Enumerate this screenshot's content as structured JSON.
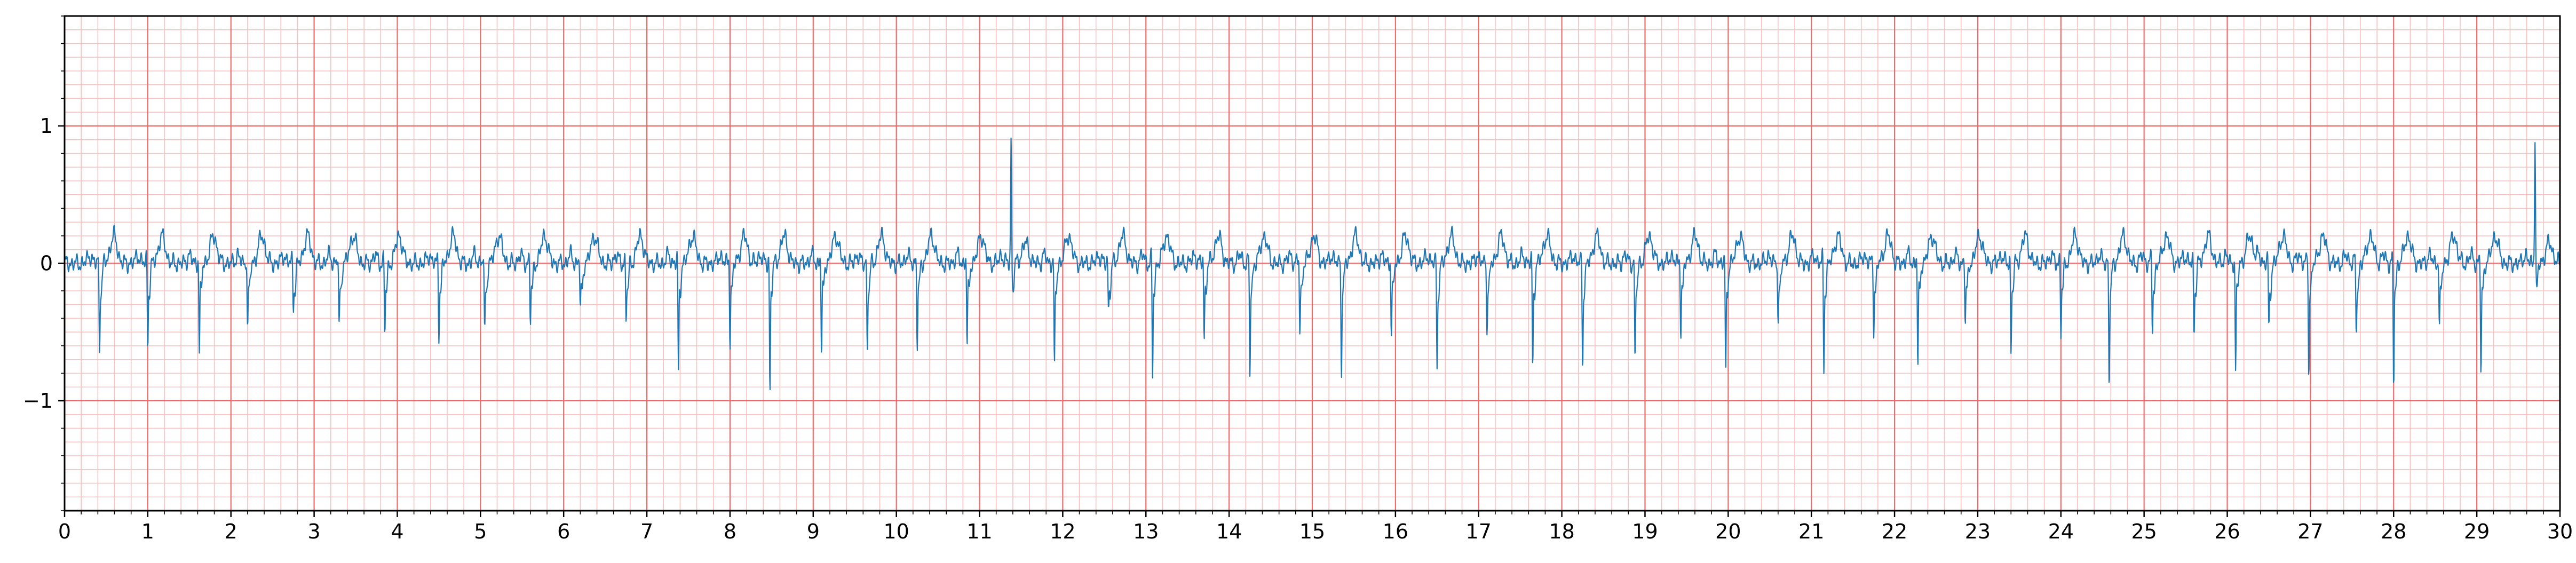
{
  "chart_data": {
    "type": "line",
    "title": "",
    "xlabel": "",
    "ylabel": "",
    "xlim": [
      0,
      30
    ],
    "ylim": [
      -1.8,
      1.8
    ],
    "grid": true,
    "grid_major_color": "#f26b6b",
    "grid_minor_color": "#f9c0c0",
    "line_color": "#1f77b4",
    "x_ticks": [
      0,
      1,
      2,
      3,
      4,
      5,
      6,
      7,
      8,
      9,
      10,
      11,
      12,
      13,
      14,
      15,
      16,
      17,
      18,
      19,
      20,
      21,
      22,
      23,
      24,
      25,
      26,
      27,
      28,
      29,
      30
    ],
    "x_tick_labels": [
      "0",
      "1",
      "2",
      "3",
      "4",
      "5",
      "6",
      "7",
      "8",
      "9",
      "10",
      "11",
      "12",
      "13",
      "14",
      "15",
      "16",
      "17",
      "18",
      "19",
      "20",
      "21",
      "22",
      "23",
      "24",
      "25",
      "26",
      "27",
      "28",
      "29",
      "30"
    ],
    "y_ticks": [
      -1,
      0,
      1
    ],
    "y_tick_labels": [
      "−1",
      "0",
      "1"
    ],
    "beats": [
      {
        "t": 0.42,
        "a": -0.6
      },
      {
        "t": 1.0,
        "a": -0.55
      },
      {
        "t": 1.62,
        "a": -0.6
      },
      {
        "t": 2.2,
        "a": -0.45
      },
      {
        "t": 2.75,
        "a": -0.25
      },
      {
        "t": 3.3,
        "a": -0.42
      },
      {
        "t": 3.85,
        "a": -0.45
      },
      {
        "t": 4.5,
        "a": -0.46
      },
      {
        "t": 5.05,
        "a": -0.48
      },
      {
        "t": 5.6,
        "a": -0.37
      },
      {
        "t": 6.2,
        "a": -0.3
      },
      {
        "t": 6.75,
        "a": -0.35
      },
      {
        "t": 7.38,
        "a": -0.75
      },
      {
        "t": 8.0,
        "a": -0.52
      },
      {
        "t": 8.48,
        "a": -0.9
      },
      {
        "t": 9.1,
        "a": -0.6
      },
      {
        "t": 9.65,
        "a": -0.6
      },
      {
        "t": 10.25,
        "a": -0.55
      },
      {
        "t": 10.85,
        "a": -0.55
      },
      {
        "t": 11.38,
        "a": 0.98
      },
      {
        "t": 11.9,
        "a": -0.75
      },
      {
        "t": 12.55,
        "a": -0.3
      },
      {
        "t": 13.08,
        "a": -0.78
      },
      {
        "t": 13.7,
        "a": -0.5
      },
      {
        "t": 14.25,
        "a": -0.78
      },
      {
        "t": 14.85,
        "a": -0.45
      },
      {
        "t": 15.35,
        "a": -0.75
      },
      {
        "t": 15.95,
        "a": -0.46
      },
      {
        "t": 16.5,
        "a": -0.72
      },
      {
        "t": 17.1,
        "a": -0.44
      },
      {
        "t": 17.65,
        "a": -0.72
      },
      {
        "t": 18.25,
        "a": -0.7
      },
      {
        "t": 18.88,
        "a": -0.7
      },
      {
        "t": 19.43,
        "a": -0.45
      },
      {
        "t": 19.97,
        "a": -0.78
      },
      {
        "t": 20.6,
        "a": -0.4
      },
      {
        "t": 21.15,
        "a": -0.72
      },
      {
        "t": 21.75,
        "a": -0.45
      },
      {
        "t": 22.28,
        "a": -0.72
      },
      {
        "t": 22.85,
        "a": -0.4
      },
      {
        "t": 23.4,
        "a": -0.6
      },
      {
        "t": 24.0,
        "a": -0.45
      },
      {
        "t": 24.58,
        "a": -0.85
      },
      {
        "t": 25.1,
        "a": -0.43
      },
      {
        "t": 25.6,
        "a": -0.45
      },
      {
        "t": 26.1,
        "a": -0.75
      },
      {
        "t": 26.5,
        "a": -0.45
      },
      {
        "t": 26.98,
        "a": -0.78
      },
      {
        "t": 27.55,
        "a": -0.45
      },
      {
        "t": 28.0,
        "a": -0.85
      },
      {
        "t": 28.55,
        "a": -0.45
      },
      {
        "t": 29.05,
        "a": -0.76
      },
      {
        "t": 29.7,
        "a": 0.97
      }
    ]
  }
}
